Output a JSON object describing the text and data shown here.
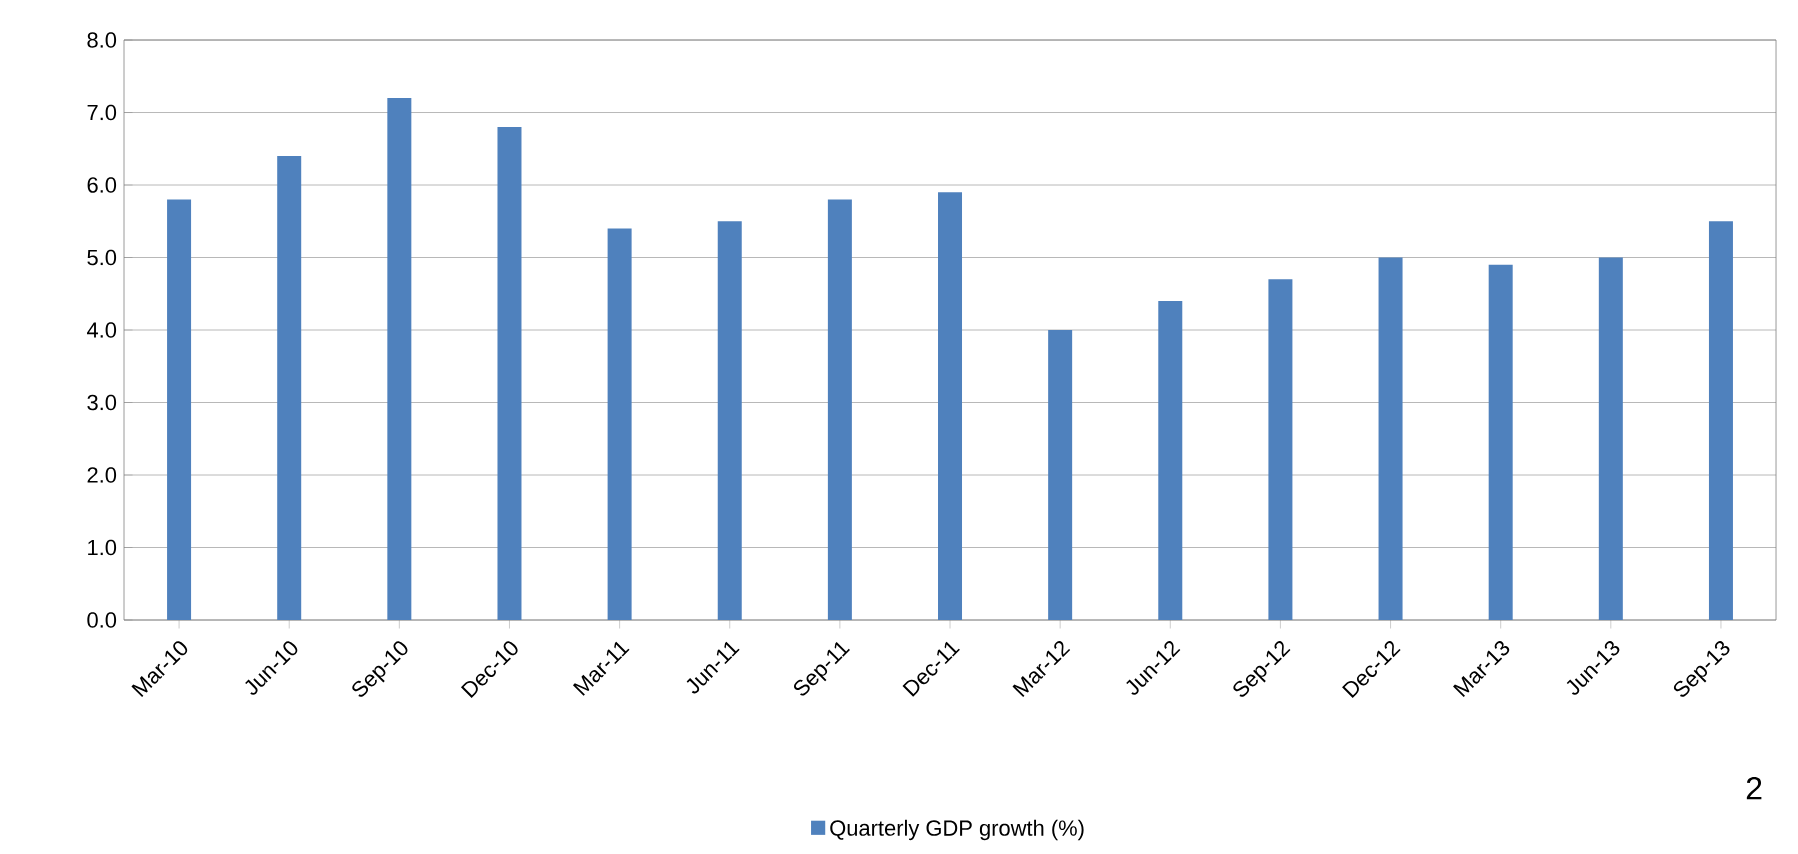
{
  "chart_data": {
    "type": "bar",
    "categories": [
      "Mar-10",
      "Jun-10",
      "Sep-10",
      "Dec-10",
      "Mar-11",
      "Jun-11",
      "Sep-11",
      "Dec-11",
      "Mar-12",
      "Jun-12",
      "Sep-12",
      "Dec-12",
      "Mar-13",
      "Jun-13",
      "Sep-13"
    ],
    "series": [
      {
        "name": "Quarterly GDP growth (%)",
        "color": "#4f81bd",
        "values": [
          5.8,
          6.4,
          7.2,
          6.8,
          5.4,
          5.5,
          5.8,
          5.9,
          4.0,
          4.4,
          4.7,
          5.0,
          4.9,
          5.0,
          5.5
        ]
      }
    ],
    "ylim": [
      0,
      8
    ],
    "yticks": [
      {
        "value": 0,
        "label": "0.0"
      },
      {
        "value": 1,
        "label": "1.0"
      },
      {
        "value": 2,
        "label": "2.0"
      },
      {
        "value": 3,
        "label": "3.0"
      },
      {
        "value": 4,
        "label": "4.0"
      },
      {
        "value": 5,
        "label": "5.0"
      },
      {
        "value": 6,
        "label": "6.0"
      },
      {
        "value": 7,
        "label": "7.0"
      },
      {
        "value": 8,
        "label": "8.0"
      }
    ],
    "grid": "y",
    "legend": "bottom",
    "annotations": [
      "2"
    ]
  }
}
